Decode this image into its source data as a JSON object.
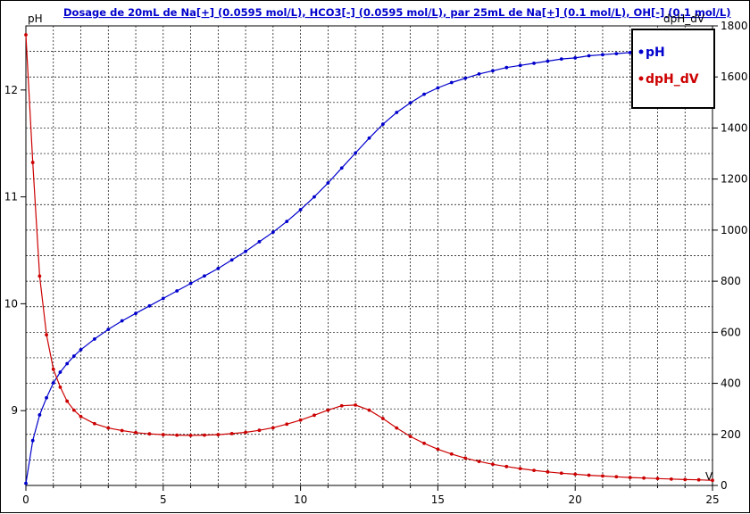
{
  "chart_data": {
    "type": "line",
    "title": "Dosage de 20mL de Na[+] (0.0595 mol/L), HCO3[-] (0.0595 mol/L),  par 25mL  de Na[+] (0.1 mol/L), OH[-] (0.1 mol/L)",
    "xlabel": "V",
    "ylabel_left": "pH",
    "ylabel_right": "dpH_dV",
    "xlim": [
      0,
      25
    ],
    "ylim_left": [
      8.3,
      12.6
    ],
    "ylim_right": [
      0,
      1800
    ],
    "x_ticks": [
      "0",
      "5",
      "10",
      "15",
      "20",
      "25"
    ],
    "y_left_ticks": [
      "9",
      "10",
      "11",
      "12"
    ],
    "y_right_ticks": [
      "0",
      "200",
      "400",
      "600",
      "800",
      "1000",
      "1200",
      "1400",
      "1600",
      "1800"
    ],
    "grid": true,
    "legend_position": "top-right",
    "series": [
      {
        "name": "pH",
        "axis": "left",
        "color": "#0000cc",
        "points": [
          [
            0.0,
            8.32
          ],
          [
            0.25,
            8.72
          ],
          [
            0.5,
            8.96
          ],
          [
            0.75,
            9.12
          ],
          [
            1.0,
            9.26
          ],
          [
            1.25,
            9.36
          ],
          [
            1.5,
            9.44
          ],
          [
            1.75,
            9.51
          ],
          [
            2.0,
            9.57
          ],
          [
            2.5,
            9.67
          ],
          [
            3.0,
            9.76
          ],
          [
            3.5,
            9.84
          ],
          [
            4.0,
            9.91
          ],
          [
            4.5,
            9.98
          ],
          [
            5.0,
            10.05
          ],
          [
            5.5,
            10.12
          ],
          [
            6.0,
            10.19
          ],
          [
            6.5,
            10.26
          ],
          [
            7.0,
            10.33
          ],
          [
            7.5,
            10.41
          ],
          [
            8.0,
            10.49
          ],
          [
            8.5,
            10.58
          ],
          [
            9.0,
            10.67
          ],
          [
            9.5,
            10.77
          ],
          [
            10.0,
            10.88
          ],
          [
            10.5,
            11.0
          ],
          [
            11.0,
            11.13
          ],
          [
            11.5,
            11.27
          ],
          [
            12.0,
            11.41
          ],
          [
            12.5,
            11.55
          ],
          [
            13.0,
            11.68
          ],
          [
            13.5,
            11.79
          ],
          [
            14.0,
            11.88
          ],
          [
            14.5,
            11.96
          ],
          [
            15.0,
            12.02
          ],
          [
            15.5,
            12.07
          ],
          [
            16.0,
            12.11
          ],
          [
            16.5,
            12.15
          ],
          [
            17.0,
            12.18
          ],
          [
            17.5,
            12.21
          ],
          [
            18.0,
            12.23
          ],
          [
            18.5,
            12.25
          ],
          [
            19.0,
            12.27
          ],
          [
            19.5,
            12.29
          ],
          [
            20.0,
            12.3
          ],
          [
            20.5,
            12.32
          ],
          [
            21.0,
            12.33
          ],
          [
            21.5,
            12.34
          ],
          [
            22.0,
            12.35
          ],
          [
            22.5,
            12.36
          ]
        ]
      },
      {
        "name": "dpH_dV",
        "axis": "right",
        "color": "#cc0000",
        "points": [
          [
            0.0,
            1765
          ],
          [
            0.25,
            1265
          ],
          [
            0.5,
            820
          ],
          [
            0.75,
            590
          ],
          [
            1.0,
            455
          ],
          [
            1.25,
            385
          ],
          [
            1.5,
            330
          ],
          [
            1.75,
            295
          ],
          [
            2.0,
            270
          ],
          [
            2.5,
            242
          ],
          [
            3.0,
            225
          ],
          [
            3.5,
            215
          ],
          [
            4.0,
            207
          ],
          [
            4.5,
            202
          ],
          [
            5.0,
            199
          ],
          [
            5.5,
            197
          ],
          [
            6.0,
            196
          ],
          [
            6.5,
            197
          ],
          [
            7.0,
            199
          ],
          [
            7.5,
            203
          ],
          [
            8.0,
            208
          ],
          [
            8.5,
            216
          ],
          [
            9.0,
            226
          ],
          [
            9.5,
            240
          ],
          [
            10.0,
            256
          ],
          [
            10.5,
            275
          ],
          [
            11.0,
            295
          ],
          [
            11.5,
            312
          ],
          [
            12.0,
            315
          ],
          [
            12.5,
            295
          ],
          [
            13.0,
            262
          ],
          [
            13.5,
            225
          ],
          [
            14.0,
            192
          ],
          [
            14.5,
            165
          ],
          [
            15.0,
            142
          ],
          [
            15.5,
            123
          ],
          [
            16.0,
            107
          ],
          [
            16.5,
            94
          ],
          [
            17.0,
            83
          ],
          [
            17.5,
            74
          ],
          [
            18.0,
            66
          ],
          [
            18.5,
            59
          ],
          [
            19.0,
            53
          ],
          [
            19.5,
            48
          ],
          [
            20.0,
            44
          ],
          [
            20.5,
            40
          ],
          [
            21.0,
            37
          ],
          [
            21.5,
            34
          ],
          [
            22.0,
            31
          ],
          [
            22.5,
            29
          ],
          [
            23.0,
            27
          ],
          [
            23.5,
            25
          ],
          [
            24.0,
            23
          ],
          [
            24.5,
            22
          ],
          [
            25.0,
            20
          ]
        ]
      }
    ]
  }
}
